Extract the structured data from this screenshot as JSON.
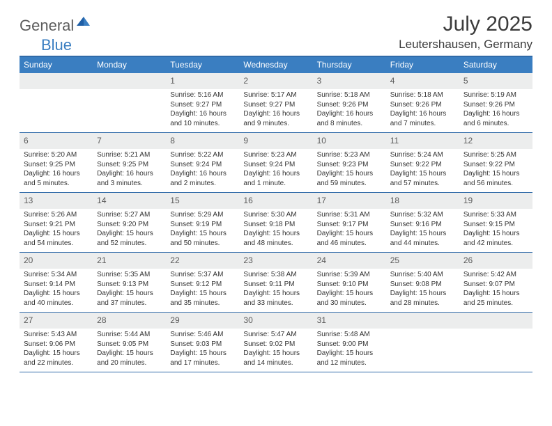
{
  "logo": {
    "text1": "General",
    "text2": "Blue"
  },
  "header": {
    "title": "July 2025",
    "location": "Leutershausen, Germany"
  },
  "colors": {
    "header_bar": "#3a7ec1",
    "border": "#2f6aa8",
    "daynum_bg": "#eceded",
    "logo_gray": "#5c5c5c",
    "logo_blue": "#3a7ec1"
  },
  "daysOfWeek": [
    "Sunday",
    "Monday",
    "Tuesday",
    "Wednesday",
    "Thursday",
    "Friday",
    "Saturday"
  ],
  "weeks": [
    [
      null,
      null,
      {
        "n": "1",
        "sr": "5:16 AM",
        "ss": "9:27 PM",
        "dl": "16 hours and 10 minutes."
      },
      {
        "n": "2",
        "sr": "5:17 AM",
        "ss": "9:27 PM",
        "dl": "16 hours and 9 minutes."
      },
      {
        "n": "3",
        "sr": "5:18 AM",
        "ss": "9:26 PM",
        "dl": "16 hours and 8 minutes."
      },
      {
        "n": "4",
        "sr": "5:18 AM",
        "ss": "9:26 PM",
        "dl": "16 hours and 7 minutes."
      },
      {
        "n": "5",
        "sr": "5:19 AM",
        "ss": "9:26 PM",
        "dl": "16 hours and 6 minutes."
      }
    ],
    [
      {
        "n": "6",
        "sr": "5:20 AM",
        "ss": "9:25 PM",
        "dl": "16 hours and 5 minutes."
      },
      {
        "n": "7",
        "sr": "5:21 AM",
        "ss": "9:25 PM",
        "dl": "16 hours and 3 minutes."
      },
      {
        "n": "8",
        "sr": "5:22 AM",
        "ss": "9:24 PM",
        "dl": "16 hours and 2 minutes."
      },
      {
        "n": "9",
        "sr": "5:23 AM",
        "ss": "9:24 PM",
        "dl": "16 hours and 1 minute."
      },
      {
        "n": "10",
        "sr": "5:23 AM",
        "ss": "9:23 PM",
        "dl": "15 hours and 59 minutes."
      },
      {
        "n": "11",
        "sr": "5:24 AM",
        "ss": "9:22 PM",
        "dl": "15 hours and 57 minutes."
      },
      {
        "n": "12",
        "sr": "5:25 AM",
        "ss": "9:22 PM",
        "dl": "15 hours and 56 minutes."
      }
    ],
    [
      {
        "n": "13",
        "sr": "5:26 AM",
        "ss": "9:21 PM",
        "dl": "15 hours and 54 minutes."
      },
      {
        "n": "14",
        "sr": "5:27 AM",
        "ss": "9:20 PM",
        "dl": "15 hours and 52 minutes."
      },
      {
        "n": "15",
        "sr": "5:29 AM",
        "ss": "9:19 PM",
        "dl": "15 hours and 50 minutes."
      },
      {
        "n": "16",
        "sr": "5:30 AM",
        "ss": "9:18 PM",
        "dl": "15 hours and 48 minutes."
      },
      {
        "n": "17",
        "sr": "5:31 AM",
        "ss": "9:17 PM",
        "dl": "15 hours and 46 minutes."
      },
      {
        "n": "18",
        "sr": "5:32 AM",
        "ss": "9:16 PM",
        "dl": "15 hours and 44 minutes."
      },
      {
        "n": "19",
        "sr": "5:33 AM",
        "ss": "9:15 PM",
        "dl": "15 hours and 42 minutes."
      }
    ],
    [
      {
        "n": "20",
        "sr": "5:34 AM",
        "ss": "9:14 PM",
        "dl": "15 hours and 40 minutes."
      },
      {
        "n": "21",
        "sr": "5:35 AM",
        "ss": "9:13 PM",
        "dl": "15 hours and 37 minutes."
      },
      {
        "n": "22",
        "sr": "5:37 AM",
        "ss": "9:12 PM",
        "dl": "15 hours and 35 minutes."
      },
      {
        "n": "23",
        "sr": "5:38 AM",
        "ss": "9:11 PM",
        "dl": "15 hours and 33 minutes."
      },
      {
        "n": "24",
        "sr": "5:39 AM",
        "ss": "9:10 PM",
        "dl": "15 hours and 30 minutes."
      },
      {
        "n": "25",
        "sr": "5:40 AM",
        "ss": "9:08 PM",
        "dl": "15 hours and 28 minutes."
      },
      {
        "n": "26",
        "sr": "5:42 AM",
        "ss": "9:07 PM",
        "dl": "15 hours and 25 minutes."
      }
    ],
    [
      {
        "n": "27",
        "sr": "5:43 AM",
        "ss": "9:06 PM",
        "dl": "15 hours and 22 minutes."
      },
      {
        "n": "28",
        "sr": "5:44 AM",
        "ss": "9:05 PM",
        "dl": "15 hours and 20 minutes."
      },
      {
        "n": "29",
        "sr": "5:46 AM",
        "ss": "9:03 PM",
        "dl": "15 hours and 17 minutes."
      },
      {
        "n": "30",
        "sr": "5:47 AM",
        "ss": "9:02 PM",
        "dl": "15 hours and 14 minutes."
      },
      {
        "n": "31",
        "sr": "5:48 AM",
        "ss": "9:00 PM",
        "dl": "15 hours and 12 minutes."
      },
      null,
      null
    ]
  ],
  "labels": {
    "sunrise": "Sunrise:",
    "sunset": "Sunset:",
    "daylight": "Daylight:"
  }
}
